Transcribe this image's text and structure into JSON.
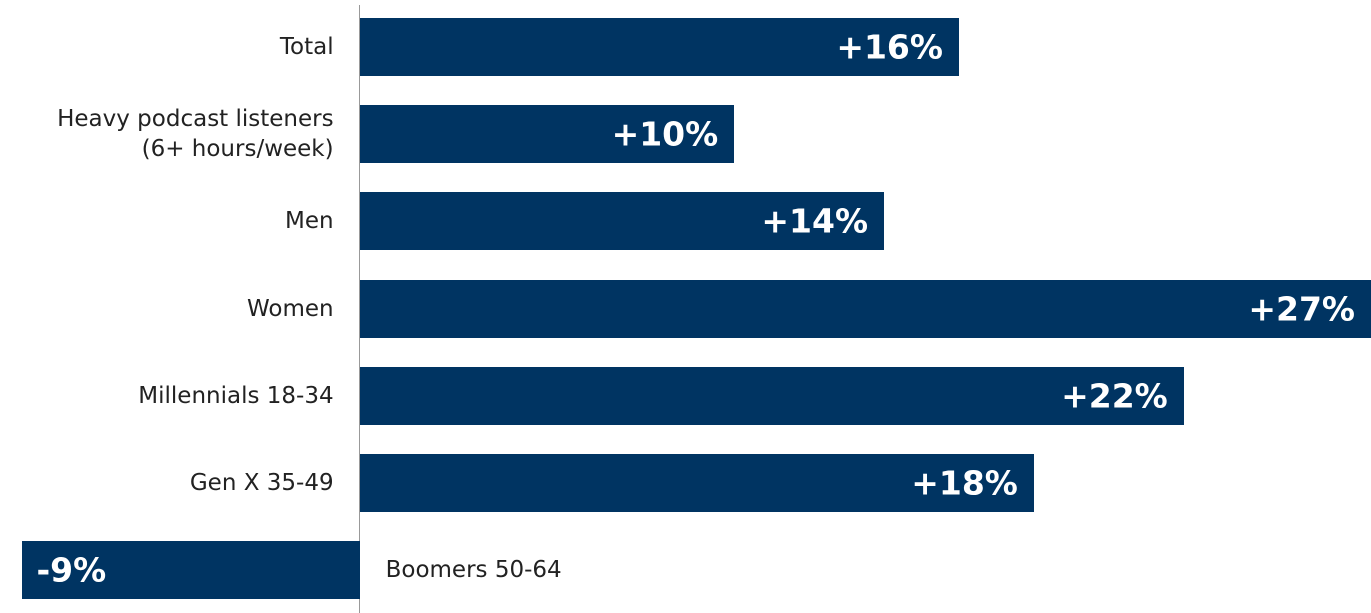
{
  "chart_data": {
    "type": "bar",
    "orientation": "horizontal",
    "categories": [
      "Total",
      "Heavy podcast listeners\n(6+ hours/week)",
      "Men",
      "Women",
      "Millennials 18-34",
      "Gen X 35-49",
      "Boomers 50-64"
    ],
    "values": [
      16,
      10,
      14,
      27,
      22,
      18,
      -9
    ],
    "value_labels": [
      "+16%",
      "+10%",
      "+14%",
      "+27%",
      "+22%",
      "+18%",
      "-9%"
    ],
    "color": "#003462",
    "xlim": [
      -9.6,
      27
    ]
  }
}
